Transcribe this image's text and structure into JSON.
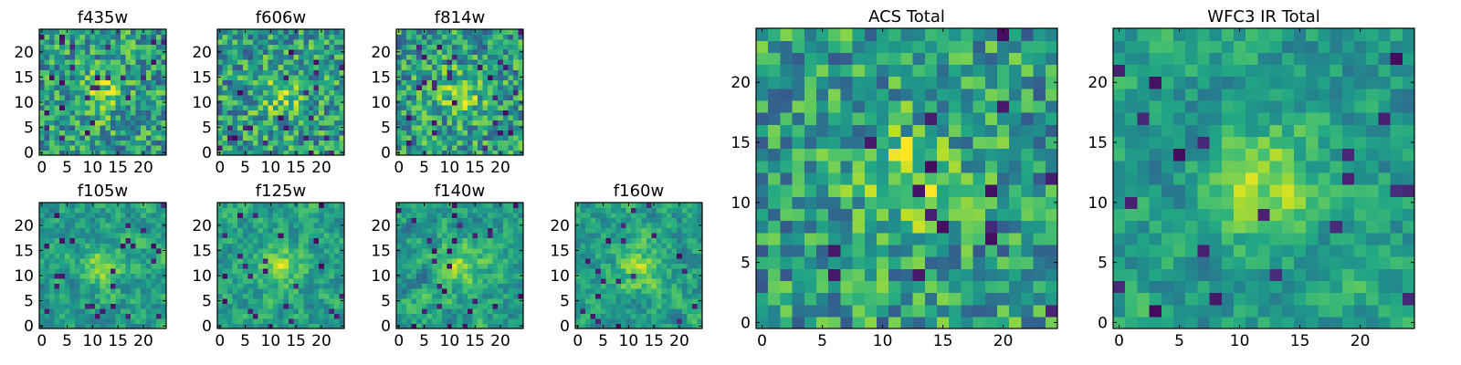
{
  "figure": {
    "colormap": "viridis",
    "colors": {
      "axes_frame": "#000000",
      "background": "#ffffff"
    }
  },
  "chart_data": [
    {
      "type": "heatmap",
      "title": "f435w",
      "grid": [
        25,
        25
      ],
      "xticks": [
        0,
        5,
        10,
        15,
        20
      ],
      "yticks": [
        0,
        5,
        10,
        15,
        20
      ],
      "xlim": [
        -0.5,
        24.5
      ],
      "ylim": [
        -0.5,
        24.5
      ],
      "values_description": ""
    },
    {
      "type": "heatmap",
      "title": "f606w",
      "grid": [
        25,
        25
      ],
      "xticks": [
        0,
        5,
        10,
        15,
        20
      ],
      "yticks": [
        0,
        5,
        10,
        15,
        20
      ],
      "xlim": [
        -0.5,
        24.5
      ],
      "ylim": [
        -0.5,
        24.5
      ]
    },
    {
      "type": "heatmap",
      "title": "f814w",
      "grid": [
        25,
        25
      ],
      "xticks": [
        0,
        5,
        10,
        15,
        20
      ],
      "yticks": [
        0,
        5,
        10,
        15,
        20
      ],
      "xlim": [
        -0.5,
        24.5
      ],
      "ylim": [
        -0.5,
        24.5
      ]
    },
    {
      "type": "heatmap",
      "title": "f105w",
      "grid": [
        25,
        25
      ],
      "xticks": [
        0,
        5,
        10,
        15,
        20
      ],
      "yticks": [
        0,
        5,
        10,
        15,
        20
      ],
      "xlim": [
        -0.5,
        24.5
      ],
      "ylim": [
        -0.5,
        24.5
      ]
    },
    {
      "type": "heatmap",
      "title": "f125w",
      "grid": [
        25,
        25
      ],
      "xticks": [
        0,
        5,
        10,
        15,
        20
      ],
      "yticks": [
        0,
        5,
        10,
        15,
        20
      ],
      "xlim": [
        -0.5,
        24.5
      ],
      "ylim": [
        -0.5,
        24.5
      ]
    },
    {
      "type": "heatmap",
      "title": "f140w",
      "grid": [
        25,
        25
      ],
      "xticks": [
        0,
        5,
        10,
        15,
        20
      ],
      "yticks": [
        0,
        5,
        10,
        15,
        20
      ],
      "xlim": [
        -0.5,
        24.5
      ],
      "ylim": [
        -0.5,
        24.5
      ]
    },
    {
      "type": "heatmap",
      "title": "f160w",
      "grid": [
        25,
        25
      ],
      "xticks": [
        0,
        5,
        10,
        15,
        20
      ],
      "yticks": [
        0,
        5,
        10,
        15,
        20
      ],
      "xlim": [
        -0.5,
        24.5
      ],
      "ylim": [
        -0.5,
        24.5
      ]
    },
    {
      "type": "heatmap",
      "title": "ACS Total",
      "grid": [
        25,
        25
      ],
      "xticks": [
        0,
        5,
        10,
        15,
        20
      ],
      "yticks": [
        0,
        5,
        10,
        15,
        20
      ],
      "xlim": [
        -0.5,
        24.5
      ],
      "ylim": [
        -0.5,
        24.5
      ]
    },
    {
      "type": "heatmap",
      "title": "WFC3 IR Total",
      "grid": [
        25,
        25
      ],
      "xticks": [
        0,
        5,
        10,
        15,
        20
      ],
      "yticks": [
        0,
        5,
        10,
        15,
        20
      ],
      "xlim": [
        -0.5,
        24.5
      ],
      "ylim": [
        -0.5,
        24.5
      ]
    }
  ]
}
